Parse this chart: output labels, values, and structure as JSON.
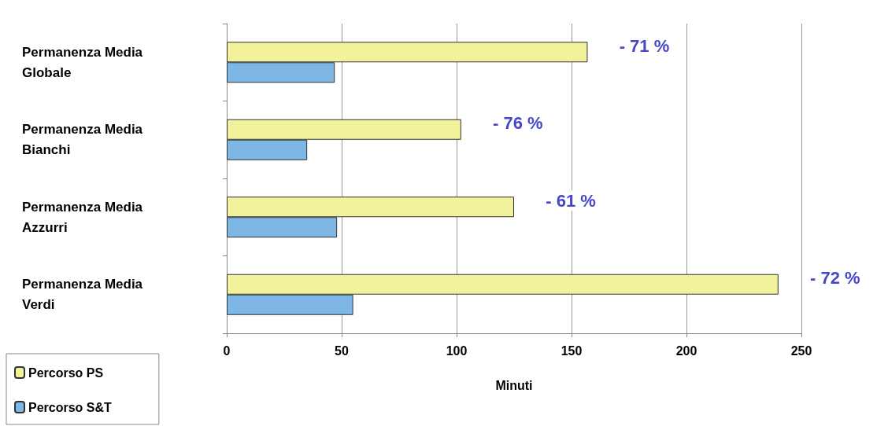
{
  "chart_data": {
    "type": "bar",
    "orientation": "horizontal",
    "xlabel": "Minuti",
    "categories": [
      "Permanenza Media Globale",
      "Permanenza Media Bianchi",
      "Permanenza Media Azzurri",
      "Permanenza Media Verdi"
    ],
    "series": [
      {
        "name": "Percorso PS",
        "color": "#f2f29c",
        "values": [
          157,
          102,
          125,
          240
        ]
      },
      {
        "name": "Percorso S&T",
        "color": "#7db7e6",
        "values": [
          47,
          35,
          48,
          55
        ]
      }
    ],
    "xlim": [
      0,
      250
    ],
    "xticks": [
      0,
      50,
      100,
      150,
      200,
      250
    ],
    "grid": "x",
    "legend": "bottom left",
    "annotations": [
      "- 71 %",
      "- 76 %",
      "- 61 %",
      "- 72 %"
    ]
  }
}
